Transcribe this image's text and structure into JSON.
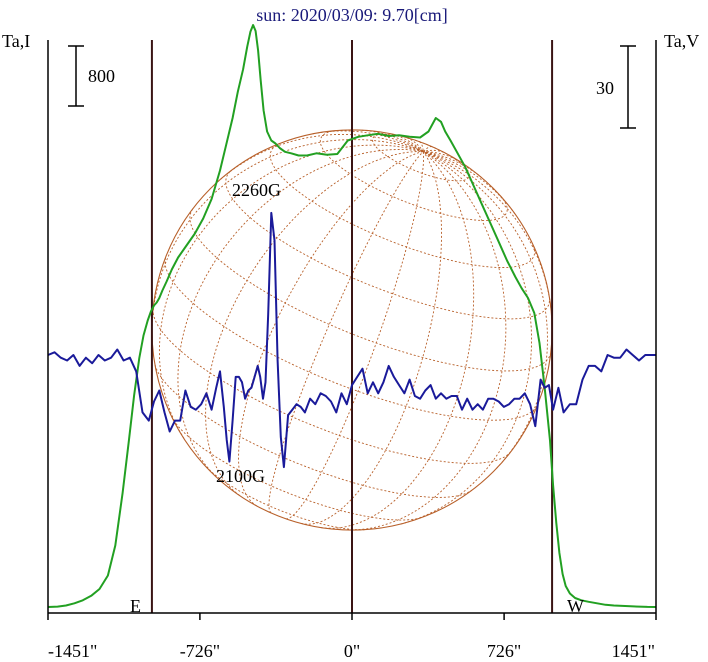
{
  "chart_data": {
    "type": "line",
    "title": "sun: 2020/03/09: 9.70[cm]",
    "left_axis_label": "Ta,I",
    "right_axis_label": "Ta,V",
    "left_scale_bar": "800",
    "right_scale_bar": "30",
    "x_ticks": [
      "-1451\"",
      "-726\"",
      "0\"",
      "726\"",
      "1451\""
    ],
    "x_tick_values": [
      -1451,
      -726,
      0,
      726,
      1451
    ],
    "xlim": [
      -1451,
      1451
    ],
    "limb_labels": {
      "east": "E",
      "west": "W"
    },
    "annotations": [
      "2260G",
      "2100G"
    ],
    "vertical_lines_arcsec": [
      -955,
      0,
      955
    ],
    "colors": {
      "intensity": "#22a022",
      "polarization": "#1a1a9a",
      "grid": "#b8602a",
      "frame": "#000000",
      "vline": "#3a1414",
      "title": "#1a1a7a"
    },
    "series": [
      {
        "name": "",
        "axis": "left",
        "x": [
          -1451,
          -1405,
          -1365,
          -1325,
          -1285,
          -1245,
          -1205,
          -1165,
          -1130,
          -1095,
          -1065,
          -1040,
          -1015,
          -995,
          -975,
          -960,
          -945,
          -932,
          -920,
          -905,
          -885,
          -860,
          -830,
          -790,
          -750,
          -710,
          -670,
          -630,
          -600,
          -570,
          -545,
          -520,
          -500,
          -485,
          -472,
          -460,
          -448,
          -436,
          -422,
          -405,
          -385,
          -365,
          -345,
          -320,
          -290,
          -255,
          -215,
          -170,
          -120,
          -70,
          -20,
          30,
          75,
          125,
          175,
          225,
          275,
          325,
          365,
          400,
          425,
          445,
          470,
          500,
          540,
          580,
          620,
          660,
          700,
          740,
          780,
          810,
          840,
          870,
          895,
          920,
          945,
          960,
          975,
          990,
          1005,
          1020,
          1040,
          1065,
          1095,
          1130,
          1170,
          1210,
          1250,
          1290,
          1330,
          1370,
          1410,
          1451
        ],
        "y": [
          80,
          85,
          100,
          130,
          170,
          230,
          320,
          500,
          900,
          1600,
          2300,
          2900,
          3400,
          3700,
          3900,
          4020,
          4100,
          4140,
          4200,
          4300,
          4420,
          4580,
          4740,
          4900,
          5060,
          5260,
          5520,
          5900,
          6250,
          6600,
          6950,
          7250,
          7550,
          7750,
          7840,
          7760,
          7500,
          7100,
          6700,
          6420,
          6300,
          6260,
          6200,
          6150,
          6130,
          6100,
          6100,
          6130,
          6110,
          6120,
          6300,
          6350,
          6370,
          6390,
          6360,
          6370,
          6350,
          6340,
          6420,
          6600,
          6550,
          6420,
          6300,
          6150,
          5950,
          5700,
          5450,
          5200,
          4950,
          4700,
          4480,
          4330,
          4200,
          4000,
          3600,
          3000,
          2300,
          1700,
          1200,
          800,
          520,
          360,
          260,
          200,
          170,
          150,
          130,
          110,
          100,
          95,
          90,
          85,
          82,
          80
        ]
      },
      {
        "name": "",
        "axis": "right",
        "x": [
          -1451,
          -1420,
          -1390,
          -1360,
          -1330,
          -1300,
          -1270,
          -1240,
          -1210,
          -1180,
          -1150,
          -1120,
          -1090,
          -1060,
          -1030,
          -1000,
          -970,
          -945,
          -920,
          -895,
          -870,
          -845,
          -820,
          -795,
          -770,
          -745,
          -720,
          -695,
          -670,
          -648,
          -630,
          -612,
          -598,
          -585,
          -570,
          -555,
          -540,
          -525,
          -510,
          -495,
          -480,
          -465,
          -450,
          -438,
          -425,
          -413,
          -400,
          -385,
          -370,
          -355,
          -340,
          -325,
          -305,
          -285,
          -265,
          -245,
          -225,
          -200,
          -175,
          -150,
          -125,
          -100,
          -75,
          -50,
          -25,
          0,
          25,
          50,
          75,
          100,
          125,
          150,
          175,
          200,
          225,
          250,
          275,
          300,
          325,
          350,
          375,
          400,
          425,
          450,
          475,
          500,
          525,
          550,
          575,
          600,
          625,
          650,
          675,
          700,
          725,
          750,
          775,
          800,
          825,
          850,
          875,
          900,
          920,
          940,
          960,
          985,
          1010,
          1040,
          1070,
          1100,
          1130,
          1160,
          1190,
          1220,
          1250,
          1280,
          1310,
          1340,
          1370,
          1400,
          1451
        ],
        "y": [
          0,
          1,
          -1,
          -2,
          0,
          -4,
          -1,
          -3,
          0,
          -2,
          -1,
          2,
          -2,
          -1,
          -6,
          -21,
          -24,
          -17,
          -13,
          -21,
          -28,
          -24,
          -24,
          -13,
          -19,
          -20,
          -18,
          -14,
          -20,
          -12,
          -6,
          -19,
          -31,
          -39,
          -24,
          -8,
          -8,
          -10,
          -16,
          -13,
          -12,
          -8,
          -4,
          -8,
          -16,
          -10,
          15,
          52,
          42,
          -2,
          -30,
          -41,
          -22,
          -20,
          -18,
          -19,
          -21,
          -16,
          -18,
          -14,
          -15,
          -17,
          -21,
          -14,
          -18,
          -11,
          -8,
          -5,
          -14,
          -10,
          -14,
          -10,
          -4,
          -8,
          -11,
          -14,
          -9,
          -15,
          -16,
          -13,
          -11,
          -16,
          -14,
          -16,
          -15,
          -15,
          -20,
          -16,
          -20,
          -18,
          -20,
          -16,
          -16,
          -17,
          -19,
          -18,
          -16,
          -16,
          -14,
          -18,
          -26,
          -9,
          -12,
          -11,
          -20,
          -12,
          -21,
          -18,
          -18,
          -9,
          -4,
          -4,
          -6,
          0,
          -1,
          -1,
          2,
          0,
          -2,
          0,
          0
        ]
      }
    ],
    "disk_center_arcsec": 0,
    "disk_radius_arcsec": 955
  }
}
